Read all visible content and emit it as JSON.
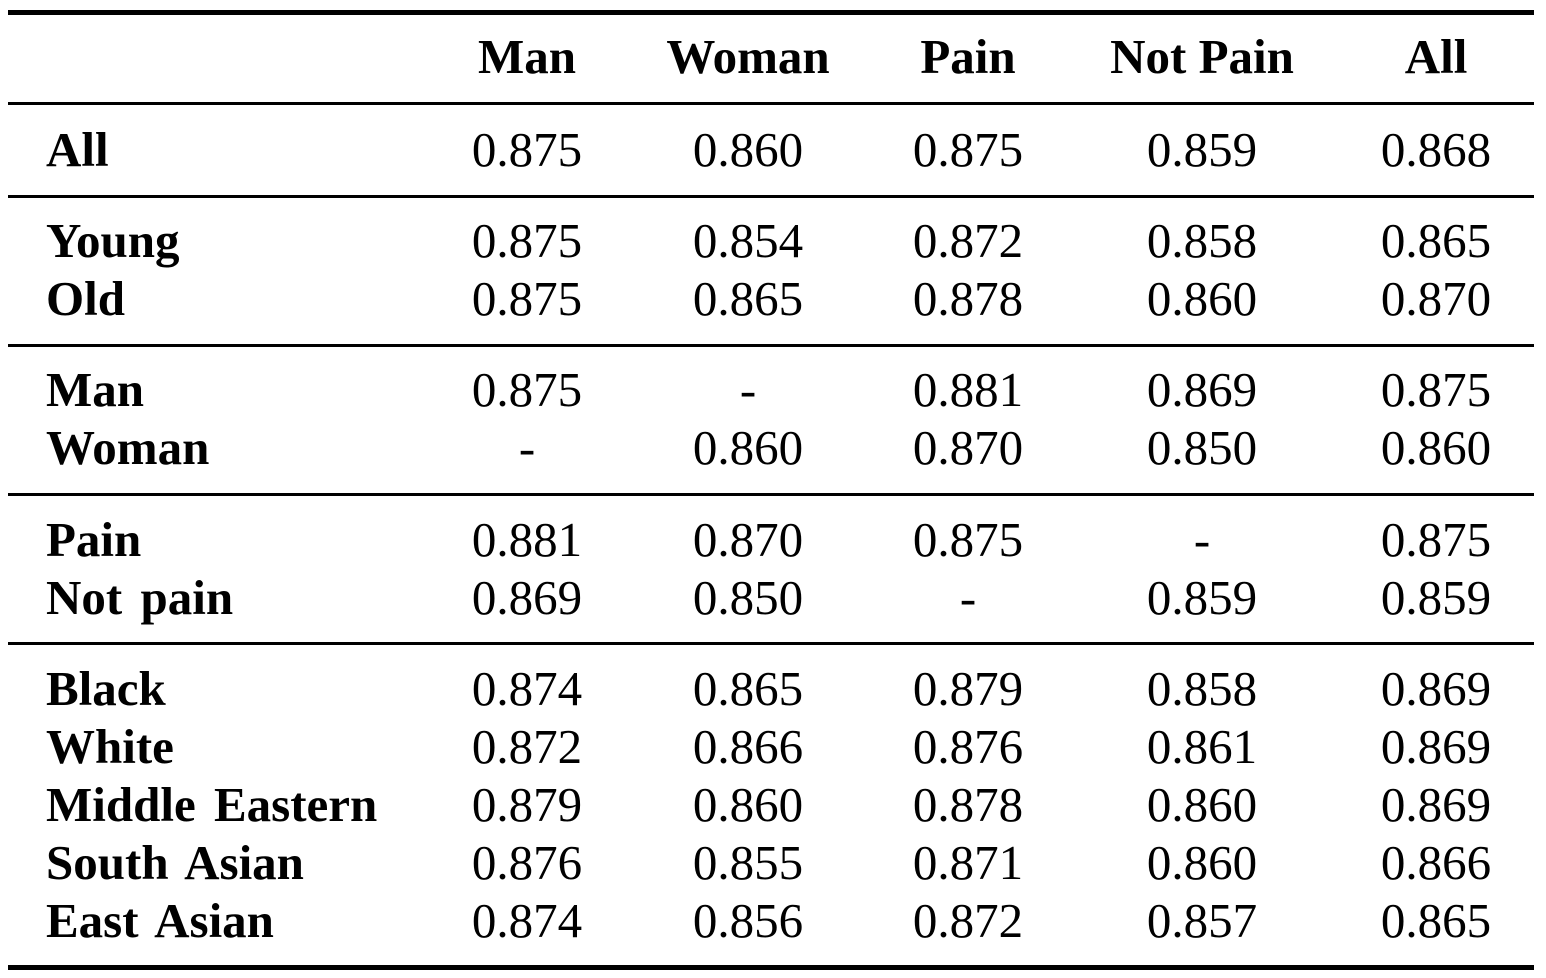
{
  "table": {
    "columns": [
      "Man",
      "Woman",
      "Pain",
      "Not Pain",
      "All"
    ],
    "groups": [
      {
        "rows": [
          {
            "label": "All",
            "values": [
              "0.875",
              "0.860",
              "0.875",
              "0.859",
              "0.868"
            ]
          }
        ]
      },
      {
        "rows": [
          {
            "label": "Young",
            "values": [
              "0.875",
              "0.854",
              "0.872",
              "0.858",
              "0.865"
            ]
          },
          {
            "label": "Old",
            "values": [
              "0.875",
              "0.865",
              "0.878",
              "0.860",
              "0.870"
            ]
          }
        ]
      },
      {
        "rows": [
          {
            "label": "Man",
            "values": [
              "0.875",
              "-",
              "0.881",
              "0.869",
              "0.875"
            ]
          },
          {
            "label": "Woman",
            "values": [
              "-",
              "0.860",
              "0.870",
              "0.850",
              "0.860"
            ]
          }
        ]
      },
      {
        "rows": [
          {
            "label": "Pain",
            "values": [
              "0.881",
              "0.870",
              "0.875",
              "-",
              "0.875"
            ]
          },
          {
            "label": "Not pain",
            "values": [
              "0.869",
              "0.850",
              "-",
              "0.859",
              "0.859"
            ]
          }
        ]
      },
      {
        "rows": [
          {
            "label": "Black",
            "values": [
              "0.874",
              "0.865",
              "0.879",
              "0.858",
              "0.869"
            ]
          },
          {
            "label": "White",
            "values": [
              "0.872",
              "0.866",
              "0.876",
              "0.861",
              "0.869"
            ]
          },
          {
            "label": "Middle Eastern",
            "values": [
              "0.879",
              "0.860",
              "0.878",
              "0.860",
              "0.869"
            ]
          },
          {
            "label": "South Asian",
            "values": [
              "0.876",
              "0.855",
              "0.871",
              "0.860",
              "0.866"
            ]
          },
          {
            "label": "East Asian",
            "values": [
              "0.874",
              "0.856",
              "0.872",
              "0.857",
              "0.865"
            ]
          }
        ]
      }
    ]
  }
}
